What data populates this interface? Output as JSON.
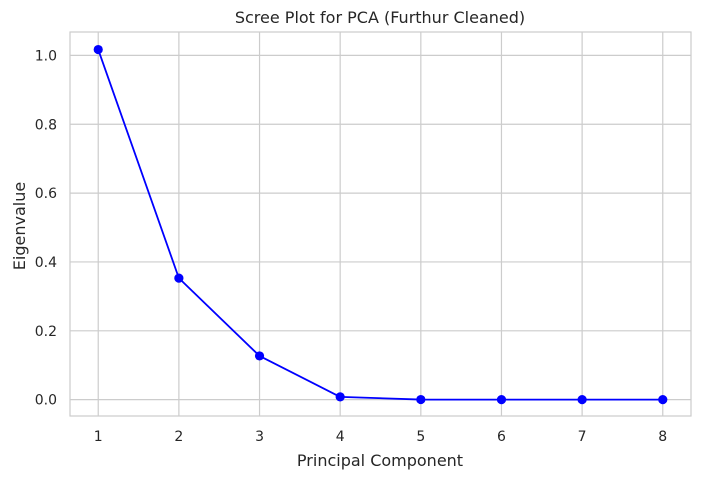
{
  "chart_data": {
    "type": "line",
    "title": "Scree Plot for PCA (Furthur Cleaned)",
    "xlabel": "Principal Component",
    "ylabel": "Eigenvalue",
    "x": [
      1,
      2,
      3,
      4,
      5,
      6,
      7,
      8
    ],
    "series": [
      {
        "values": [
          1.017,
          0.353,
          0.127,
          0.008,
          0.0003,
          0.0001,
          0.0001,
          0.0001
        ],
        "color": "#0000ff",
        "marker": "circle"
      }
    ],
    "xlim": [
      0.65,
      8.35
    ],
    "ylim": [
      -0.0475,
      1.068
    ],
    "xticks": [
      "1",
      "2",
      "3",
      "4",
      "5",
      "6",
      "7",
      "8"
    ],
    "yticks": [
      "0.0",
      "0.2",
      "0.4",
      "0.6",
      "0.8",
      "1.0"
    ],
    "ytick_values": [
      0.0,
      0.2,
      0.4,
      0.6,
      0.8,
      1.0
    ],
    "grid": true,
    "style": "whitegrid"
  }
}
